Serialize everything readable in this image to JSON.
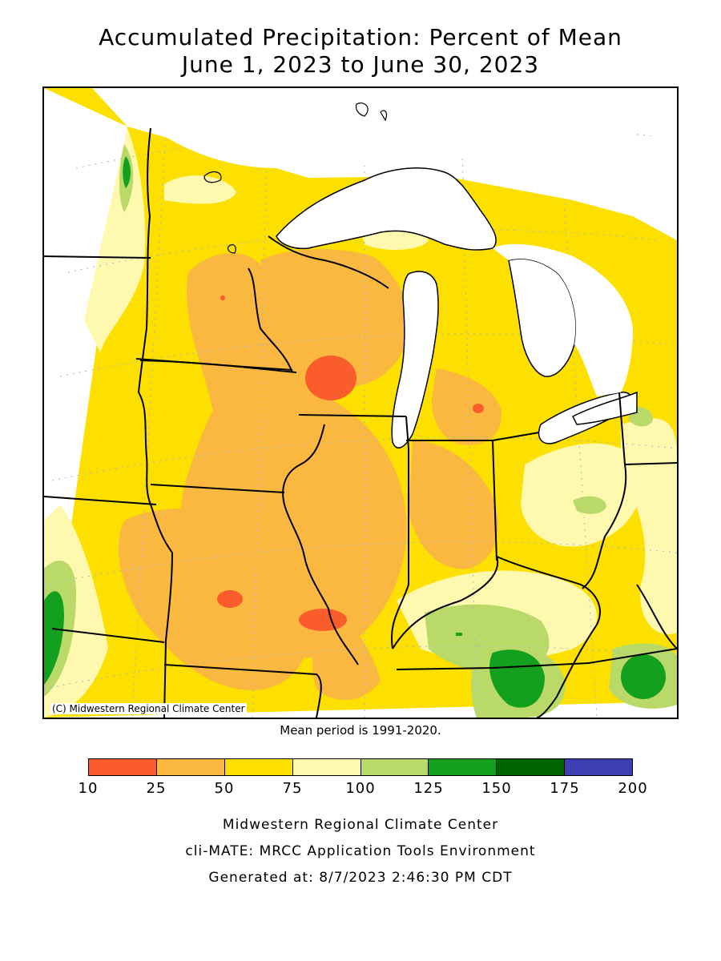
{
  "title": {
    "line1": "Accumulated Precipitation: Percent of Mean",
    "line2": "June 1, 2023 to June 30, 2023"
  },
  "map": {
    "copyright": "(C) Midwestern Regional Climate Center",
    "mean_period": "Mean period is 1991-2020."
  },
  "legend": {
    "ticks": [
      "10",
      "25",
      "50",
      "75",
      "100",
      "125",
      "150",
      "175",
      "200"
    ],
    "colors": [
      "#fa5c2c",
      "#fbb840",
      "#fde000",
      "#fff9b0",
      "#b9d968",
      "#12a01e",
      "#006400",
      "#3f3fb5"
    ]
  },
  "footer": {
    "line1": "Midwestern Regional Climate Center",
    "line2": "cli-MATE: MRCC Application Tools Environment",
    "line3": "Generated at: 8/7/2023 2:46:30 PM CDT"
  }
}
